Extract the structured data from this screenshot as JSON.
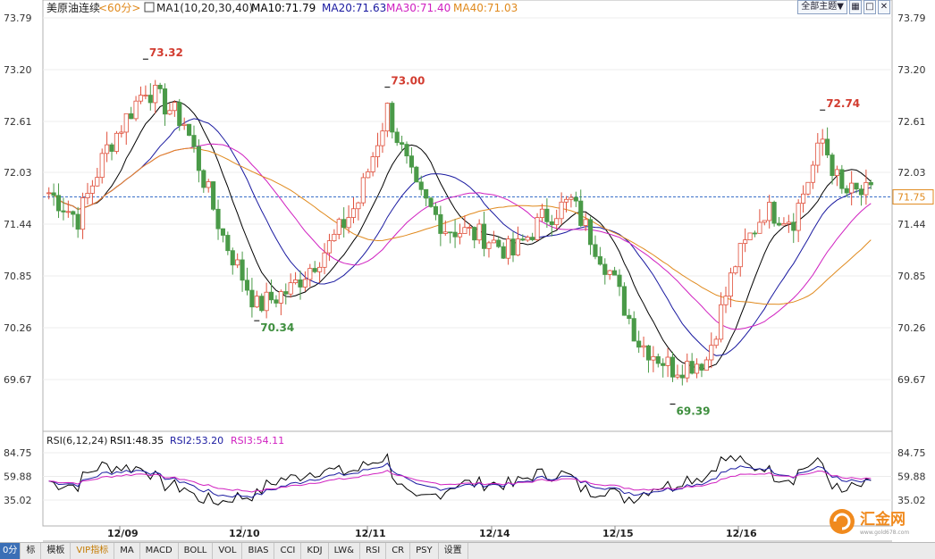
{
  "header": {
    "symbol": "美原油连续",
    "period": "<60分>",
    "ma_params": "MA1(10,20,30,40)",
    "ma10": "MA10:71.79",
    "ma20": "MA20:71.63",
    "ma30": "MA30:71.40",
    "ma40": "MA40:71.03",
    "theme_button": "全部主题▼",
    "colors": {
      "ma10": "#000000",
      "ma20": "#1a1aa0",
      "ma30": "#d020c0",
      "ma40": "#e08a1e"
    }
  },
  "rsi_header": {
    "label": "RSI(6,12,24)",
    "rsi1": "RSI1:48.35",
    "rsi2": "RSI2:53.20",
    "rsi3": "RSI3:54.11"
  },
  "chart_data": {
    "type": "candlestick",
    "price_ticks": [
      "73.79",
      "73.20",
      "72.61",
      "72.03",
      "71.44",
      "70.85",
      "70.26",
      "69.67"
    ],
    "rsi_ticks": [
      "84.75",
      "59.88",
      "35.02"
    ],
    "x_labels": [
      "12/09",
      "12/10",
      "12/11",
      "12/14",
      "12/15",
      "12/16"
    ],
    "last_price": "71.75",
    "annotations": [
      {
        "text": "73.32",
        "kind": "high",
        "bar": 20
      },
      {
        "text": "70.34",
        "kind": "low",
        "bar": 43
      },
      {
        "text": "73.00",
        "kind": "high",
        "bar": 70
      },
      {
        "text": "69.39",
        "kind": "low",
        "bar": 129
      },
      {
        "text": "72.74",
        "kind": "high",
        "bar": 160
      }
    ],
    "ylim_price": [
      69.67,
      73.79
    ],
    "ylim_rsi": [
      35.02,
      84.75
    ]
  },
  "icons": {
    "theme": "dropdown-icon",
    "view1": "grid-icon",
    "view2": "window-icon",
    "view3": "close-icon",
    "logo": "huijin-logo-icon"
  },
  "logo": {
    "name": "汇金网",
    "url": "www.gold678.com"
  },
  "tabs": [
    "0分",
    "标",
    "模板",
    "VIP指标",
    "MA",
    "MACD",
    "BOLL",
    "VOL",
    "BIAS",
    "CCI",
    "KDJ",
    "LW&",
    "RSI",
    "CR",
    "PSY",
    "设置"
  ]
}
